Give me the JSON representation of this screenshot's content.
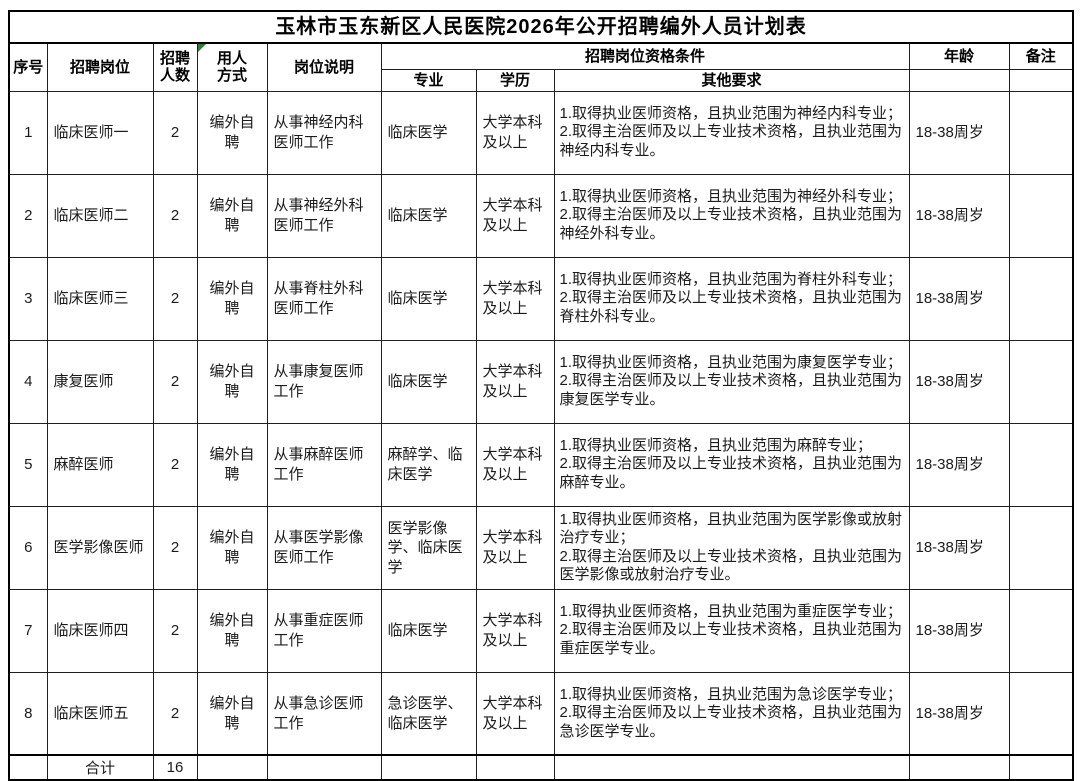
{
  "title": "玉林市玉东新区人民医院2026年公开招聘编外人员计划表",
  "colors": {
    "comment_flag": "#2e7d32",
    "border": "#000000",
    "text": "#1b1b1b"
  },
  "table": {
    "headers": {
      "no": "序号",
      "position": "招聘岗位",
      "count": "招聘\n人数",
      "method": "用人\n方式",
      "desc": "岗位说明",
      "qualifications": "招聘岗位资格条件",
      "major": "专业",
      "edu": "学历",
      "other": "其他要求",
      "age": "年龄",
      "note": "备注"
    },
    "rows": [
      {
        "no": "1",
        "position": "临床医师一",
        "count": "2",
        "method": "编外自聘",
        "desc": "从事神经内科医师工作",
        "major": "临床医学",
        "edu": "大学本科及以上",
        "other": "1.取得执业医师资格，且执业范围为神经内科专业；\n2.取得主治医师及以上专业技术资格，且执业范围为神经内科专业。",
        "age": "18-38周岁",
        "note": ""
      },
      {
        "no": "2",
        "position": "临床医师二",
        "count": "2",
        "method": "编外自聘",
        "desc": "从事神经外科医师工作",
        "major": "临床医学",
        "edu": "大学本科及以上",
        "other": "1.取得执业医师资格，且执业范围为神经外科专业；\n2.取得主治医师及以上专业技术资格，且执业范围为神经外科专业。",
        "age": "18-38周岁",
        "note": ""
      },
      {
        "no": "3",
        "position": "临床医师三",
        "count": "2",
        "method": "编外自聘",
        "desc": "从事脊柱外科医师工作",
        "major": "临床医学",
        "edu": "大学本科及以上",
        "other": "1.取得执业医师资格，且执业范围为脊柱外科专业；\n2.取得主治医师及以上专业技术资格，且执业范围为脊柱外科专业。",
        "age": "18-38周岁",
        "note": ""
      },
      {
        "no": "4",
        "position": "康复医师",
        "count": "2",
        "method": "编外自聘",
        "desc": "从事康复医师工作",
        "major": "临床医学",
        "edu": "大学本科及以上",
        "other": "1.取得执业医师资格，且执业范围为康复医学专业；\n2.取得主治医师及以上专业技术资格，且执业范围为康复医学专业。",
        "age": "18-38周岁",
        "note": ""
      },
      {
        "no": "5",
        "position": "麻醉医师",
        "count": "2",
        "method": "编外自聘",
        "desc": "从事麻醉医师工作",
        "major": "麻醉学、临床医学",
        "edu": "大学本科及以上",
        "other": "1.取得执业医师资格，且执业范围为麻醉专业；\n2.取得主治医师及以上专业技术资格，且执业范围为麻醉专业。",
        "age": "18-38周岁",
        "note": ""
      },
      {
        "no": "6",
        "position": "医学影像医师",
        "count": "2",
        "method": "编外自聘",
        "desc": "从事医学影像医师工作",
        "major": "医学影像学、临床医学",
        "edu": "大学本科及以上",
        "other": "1.取得执业医师资格，且执业范围为医学影像或放射治疗专业；\n2.取得主治医师及以上专业技术资格，且执业范围为医学影像或放射治疗专业。",
        "age": "18-38周岁",
        "note": ""
      },
      {
        "no": "7",
        "position": "临床医师四",
        "count": "2",
        "method": "编外自聘",
        "desc": "从事重症医师工作",
        "major": "临床医学",
        "edu": "大学本科及以上",
        "other": "1.取得执业医师资格，且执业范围为重症医学专业；\n2.取得主治医师及以上专业技术资格，且执业范围为重症医学专业。",
        "age": "18-38周岁",
        "note": ""
      },
      {
        "no": "8",
        "position": "临床医师五",
        "count": "2",
        "method": "编外自聘",
        "desc": "从事急诊医师工作",
        "major": "急诊医学、临床医学",
        "edu": "大学本科及以上",
        "other": "1.取得执业医师资格，且执业范围为急诊医学专业；\n2.取得主治医师及以上专业技术资格，且执业范围为急诊医学专业。",
        "age": "18-38周岁",
        "note": ""
      }
    ],
    "total": {
      "label": "合计",
      "count": "16"
    }
  }
}
